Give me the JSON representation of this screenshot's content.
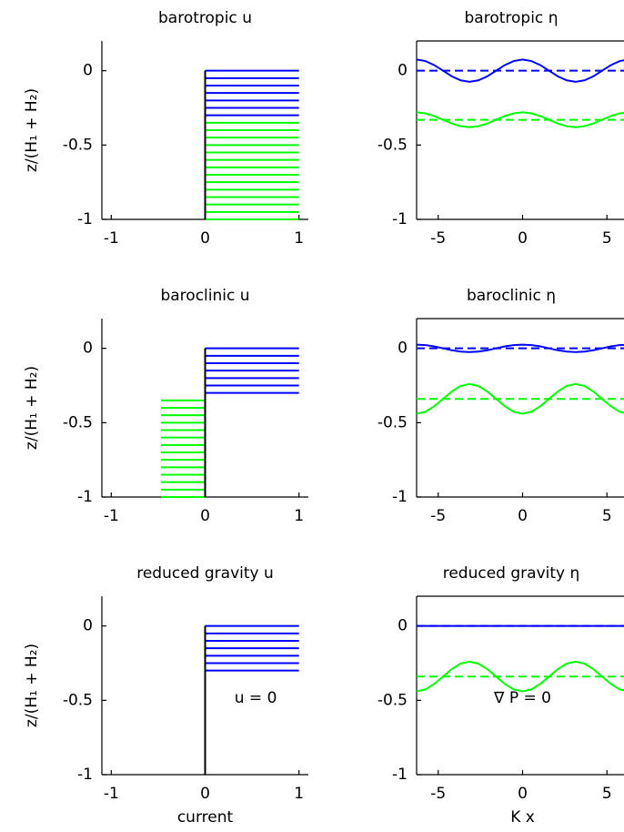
{
  "chart_data": [
    {
      "type": "profile",
      "title": "barotropic u",
      "ylabel": "z/(H₁ + H₂)",
      "xlim": [
        -1.1,
        1.1
      ],
      "xticks": [
        -1,
        0,
        1
      ],
      "ylim": [
        -1,
        0.2
      ],
      "yticks": [
        -1,
        -0.5,
        0
      ],
      "box": false,
      "series": [
        {
          "color": "#0000ff",
          "u": 1,
          "z": [
            0,
            -0.05,
            -0.1,
            -0.15,
            -0.2,
            -0.25,
            -0.3
          ]
        },
        {
          "color": "#00ff00",
          "u": 1,
          "z": [
            -0.35,
            -0.4,
            -0.45,
            -0.5,
            -0.55,
            -0.6,
            -0.65,
            -0.7,
            -0.75,
            -0.8,
            -0.85,
            -0.9,
            -0.95,
            -1
          ]
        }
      ]
    },
    {
      "type": "line",
      "title": "barotropic η",
      "xlim": [
        -6.28,
        6.28
      ],
      "xticks": [
        -5,
        0,
        5
      ],
      "ylim": [
        -1,
        0.2
      ],
      "yticks": [
        -1,
        -0.5,
        0
      ],
      "box": true,
      "x": [
        -6.28,
        -5.76,
        -5.24,
        -4.71,
        -4.19,
        -3.67,
        -3.14,
        -2.62,
        -2.09,
        -1.57,
        -1.05,
        -0.52,
        0,
        0.52,
        1.05,
        1.57,
        2.09,
        2.62,
        3.14,
        3.67,
        4.19,
        4.71,
        5.24,
        5.76,
        6.28
      ],
      "series": [
        {
          "color": "#0000ff",
          "mean": 0,
          "values": [
            0.075,
            0.065,
            0.038,
            0,
            -0.038,
            -0.065,
            -0.075,
            -0.065,
            -0.038,
            0,
            0.038,
            0.065,
            0.075,
            0.065,
            0.038,
            0,
            -0.038,
            -0.065,
            -0.075,
            -0.065,
            -0.038,
            0,
            0.038,
            0.065,
            0.075
          ]
        },
        {
          "color": "#00ff00",
          "mean": -0.33,
          "values": [
            -0.28,
            -0.287,
            -0.305,
            -0.33,
            -0.355,
            -0.373,
            -0.38,
            -0.373,
            -0.355,
            -0.33,
            -0.305,
            -0.287,
            -0.28,
            -0.287,
            -0.305,
            -0.33,
            -0.355,
            -0.373,
            -0.38,
            -0.373,
            -0.355,
            -0.33,
            -0.305,
            -0.287,
            -0.28
          ]
        }
      ]
    },
    {
      "type": "profile",
      "title": "baroclinic u",
      "ylabel": "z/(H₁ + H₂)",
      "xlim": [
        -1.1,
        1.1
      ],
      "xticks": [
        -1,
        0,
        1
      ],
      "ylim": [
        -1,
        0.2
      ],
      "yticks": [
        -1,
        -0.5,
        0
      ],
      "box": false,
      "series": [
        {
          "color": "#0000ff",
          "u": 1,
          "z": [
            0,
            -0.05,
            -0.1,
            -0.15,
            -0.2,
            -0.25,
            -0.3
          ]
        },
        {
          "color": "#00ff00",
          "u": -0.47,
          "z": [
            -0.35,
            -0.4,
            -0.45,
            -0.5,
            -0.55,
            -0.6,
            -0.65,
            -0.7,
            -0.75,
            -0.8,
            -0.85,
            -0.9,
            -0.95,
            -1
          ]
        }
      ]
    },
    {
      "type": "line",
      "title": "baroclinic η",
      "xlim": [
        -6.28,
        6.28
      ],
      "xticks": [
        -5,
        0,
        5
      ],
      "ylim": [
        -1,
        0.2
      ],
      "yticks": [
        -1,
        -0.5,
        0
      ],
      "box": true,
      "x": [
        -6.28,
        -5.76,
        -5.24,
        -4.71,
        -4.19,
        -3.67,
        -3.14,
        -2.62,
        -2.09,
        -1.57,
        -1.05,
        -0.52,
        0,
        0.52,
        1.05,
        1.57,
        2.09,
        2.62,
        3.14,
        3.67,
        4.19,
        4.71,
        5.24,
        5.76,
        6.28
      ],
      "series": [
        {
          "color": "#0000ff",
          "mean": 0,
          "values": [
            0.025,
            0.022,
            0.013,
            0,
            -0.013,
            -0.022,
            -0.025,
            -0.022,
            -0.013,
            0,
            0.013,
            0.022,
            0.025,
            0.022,
            0.013,
            0,
            -0.013,
            -0.022,
            -0.025,
            -0.022,
            -0.013,
            0,
            0.013,
            0.022,
            0.025
          ]
        },
        {
          "color": "#00ff00",
          "mean": -0.34,
          "values": [
            -0.44,
            -0.427,
            -0.39,
            -0.34,
            -0.29,
            -0.253,
            -0.24,
            -0.253,
            -0.29,
            -0.34,
            -0.39,
            -0.427,
            -0.44,
            -0.427,
            -0.39,
            -0.34,
            -0.29,
            -0.253,
            -0.24,
            -0.253,
            -0.29,
            -0.34,
            -0.39,
            -0.427,
            -0.44
          ]
        }
      ]
    },
    {
      "type": "profile",
      "title": "reduced gravity u",
      "ylabel": "z/(H₁ + H₂)",
      "xlabel": "current",
      "annotation": "u = 0",
      "xlim": [
        -1.1,
        1.1
      ],
      "xticks": [
        -1,
        0,
        1
      ],
      "ylim": [
        -1,
        0.2
      ],
      "yticks": [
        -1,
        -0.5,
        0
      ],
      "box": false,
      "series": [
        {
          "color": "#0000ff",
          "u": 1,
          "z": [
            0,
            -0.05,
            -0.1,
            -0.15,
            -0.2,
            -0.25,
            -0.3
          ]
        }
      ]
    },
    {
      "type": "line",
      "title": "reduced gravity η",
      "xlabel": "K x",
      "annotation": "∇ P  = 0",
      "xlim": [
        -6.28,
        6.28
      ],
      "xticks": [
        -5,
        0,
        5
      ],
      "ylim": [
        -1,
        0.2
      ],
      "yticks": [
        -1,
        -0.5,
        0
      ],
      "box": true,
      "x": [
        -6.28,
        -5.76,
        -5.24,
        -4.71,
        -4.19,
        -3.67,
        -3.14,
        -2.62,
        -2.09,
        -1.57,
        -1.05,
        -0.52,
        0,
        0.52,
        1.05,
        1.57,
        2.09,
        2.62,
        3.14,
        3.67,
        4.19,
        4.71,
        5.24,
        5.76,
        6.28
      ],
      "series": [
        {
          "color": "#0000ff",
          "mean": 0,
          "values": [
            0,
            0,
            0,
            0,
            0,
            0,
            0,
            0,
            0,
            0,
            0,
            0,
            0,
            0,
            0,
            0,
            0,
            0,
            0,
            0,
            0,
            0,
            0,
            0,
            0
          ]
        },
        {
          "color": "#00ff00",
          "mean": -0.34,
          "values": [
            -0.44,
            -0.427,
            -0.39,
            -0.34,
            -0.29,
            -0.253,
            -0.24,
            -0.253,
            -0.29,
            -0.34,
            -0.39,
            -0.427,
            -0.44,
            -0.427,
            -0.39,
            -0.34,
            -0.29,
            -0.253,
            -0.24,
            -0.253,
            -0.29,
            -0.34,
            -0.39,
            -0.427,
            -0.44
          ]
        }
      ]
    }
  ]
}
